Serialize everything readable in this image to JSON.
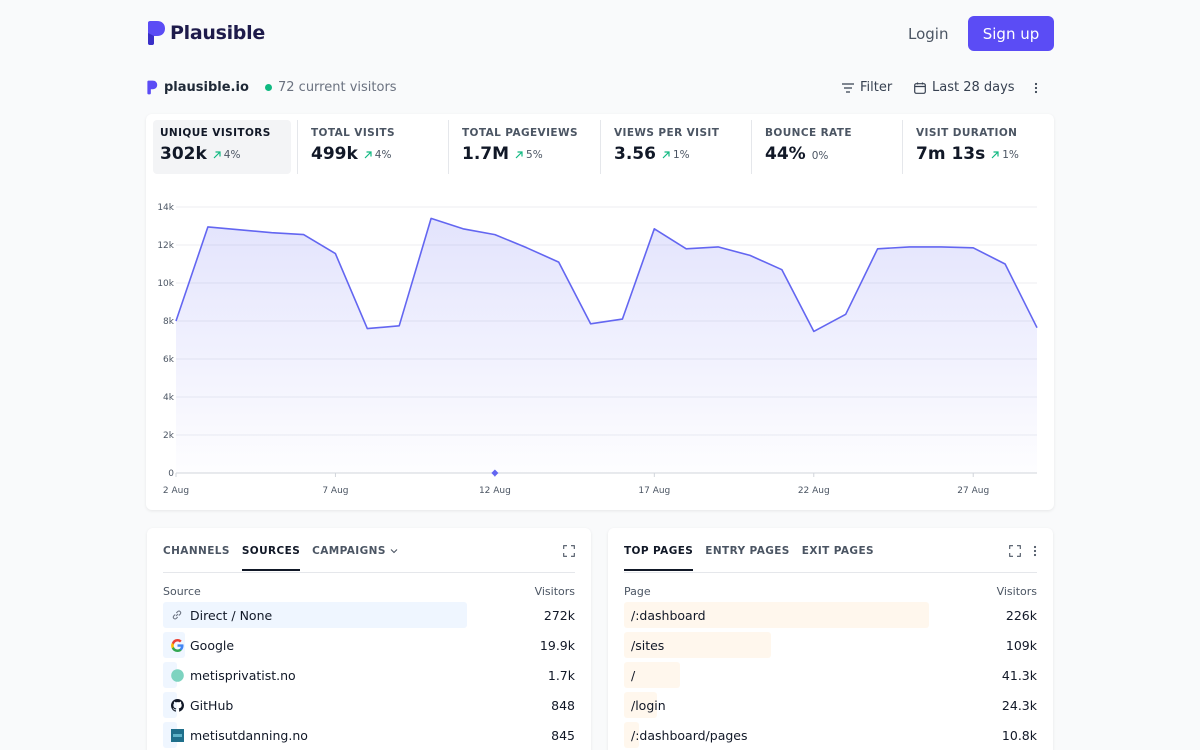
{
  "header": {
    "brand": "Plausible",
    "login_label": "Login",
    "signup_label": "Sign up"
  },
  "site": {
    "domain": "plausible.io",
    "current_visitors": "72 current visitors",
    "filter_label": "Filter",
    "period_label": "Last 28 days"
  },
  "metrics": [
    {
      "label": "UNIQUE VISITORS",
      "value": "302k",
      "change": "4%",
      "trend": "up"
    },
    {
      "label": "TOTAL VISITS",
      "value": "499k",
      "change": "4%",
      "trend": "up"
    },
    {
      "label": "TOTAL PAGEVIEWS",
      "value": "1.7M",
      "change": "5%",
      "trend": "up"
    },
    {
      "label": "VIEWS PER VISIT",
      "value": "3.56",
      "change": "1%",
      "trend": "up"
    },
    {
      "label": "BOUNCE RATE",
      "value": "44%",
      "change": "0%",
      "trend": "flat"
    },
    {
      "label": "VISIT DURATION",
      "value": "7m 13s",
      "change": "1%",
      "trend": "up"
    }
  ],
  "chart_data": {
    "type": "area",
    "x": [
      "2 Aug",
      "3 Aug",
      "4 Aug",
      "5 Aug",
      "6 Aug",
      "7 Aug",
      "8 Aug",
      "9 Aug",
      "10 Aug",
      "11 Aug",
      "12 Aug",
      "13 Aug",
      "14 Aug",
      "15 Aug",
      "16 Aug",
      "17 Aug",
      "18 Aug",
      "19 Aug",
      "20 Aug",
      "21 Aug",
      "22 Aug",
      "23 Aug",
      "24 Aug",
      "25 Aug",
      "26 Aug",
      "27 Aug",
      "28 Aug",
      "29 Aug"
    ],
    "series": [
      {
        "values": [
          8000,
          12950,
          12800,
          12650,
          12550,
          11550,
          7600,
          7750,
          13400,
          12850,
          12550,
          11850,
          11100,
          7850,
          8100,
          12850,
          11800,
          11900,
          11450,
          10700,
          7450,
          8350,
          11800,
          11900,
          11900,
          11850,
          11000,
          7650
        ]
      }
    ],
    "x_tick_labels": [
      "2 Aug",
      "7 Aug",
      "12 Aug",
      "17 Aug",
      "22 Aug",
      "27 Aug"
    ],
    "y_tick_labels": [
      "0",
      "2k",
      "4k",
      "6k",
      "8k",
      "10k",
      "12k",
      "14k"
    ],
    "ylim": [
      0,
      14000
    ],
    "grid": true,
    "color": "#6366f1"
  },
  "sources_panel": {
    "tabs": [
      {
        "label": "CHANNELS",
        "active": false
      },
      {
        "label": "SOURCES",
        "active": true
      },
      {
        "label": "CAMPAIGNS",
        "active": false,
        "dropdown": true
      }
    ],
    "col_left": "Source",
    "col_right": "Visitors",
    "bar_color": "#eff6ff",
    "rows": [
      {
        "label": "Direct / None",
        "value": "272k",
        "share": 1.0,
        "icon": "link-icon"
      },
      {
        "label": "Google",
        "value": "19.9k",
        "share": 0.073,
        "icon": "google-icon"
      },
      {
        "label": "metisprivatist.no",
        "value": "1.7k",
        "share": 0.006,
        "icon": "favicon-circle"
      },
      {
        "label": "GitHub",
        "value": "848",
        "share": 0.003,
        "icon": "github-icon"
      },
      {
        "label": "metisutdanning.no",
        "value": "845",
        "share": 0.003,
        "icon": "favicon-square"
      }
    ]
  },
  "pages_panel": {
    "tabs": [
      {
        "label": "TOP PAGES",
        "active": true
      },
      {
        "label": "ENTRY PAGES",
        "active": false
      },
      {
        "label": "EXIT PAGES",
        "active": false
      }
    ],
    "col_left": "Page",
    "col_right": "Visitors",
    "bar_color": "#fff7ed",
    "rows": [
      {
        "label": "/:dashboard",
        "value": "226k",
        "share": 1.0
      },
      {
        "label": "/sites",
        "value": "109k",
        "share": 0.482
      },
      {
        "label": "/",
        "value": "41.3k",
        "share": 0.183
      },
      {
        "label": "/login",
        "value": "24.3k",
        "share": 0.108
      },
      {
        "label": "/:dashboard/pages",
        "value": "10.8k",
        "share": 0.048
      }
    ]
  }
}
